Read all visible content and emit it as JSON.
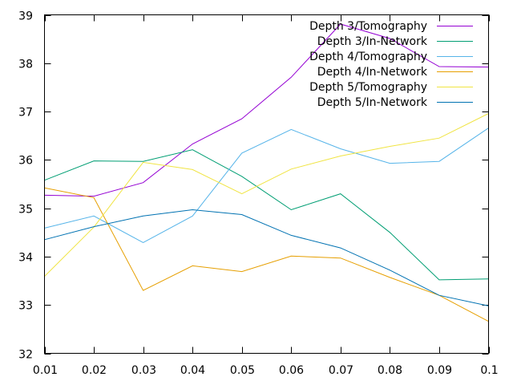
{
  "chart_data": {
    "type": "line",
    "title": "",
    "xlabel": "",
    "ylabel": "",
    "xlim": [
      0.01,
      0.1
    ],
    "ylim": [
      32,
      39
    ],
    "grid": false,
    "legend_position": "top-right",
    "x": [
      0.01,
      0.02,
      0.03,
      0.04,
      0.05,
      0.06,
      0.07,
      0.08,
      0.09,
      0.1
    ],
    "x_tick_labels": [
      "0.01",
      "0.02",
      "0.03",
      "0.04",
      "0.05",
      "0.06",
      "0.07",
      "0.08",
      "0.09",
      "0.1"
    ],
    "y_ticks": [
      32,
      33,
      34,
      35,
      36,
      37,
      38,
      39
    ],
    "y_tick_labels": [
      "32",
      "33",
      "34",
      "35",
      "36",
      "37",
      "38",
      "39"
    ],
    "series": [
      {
        "name": "Depth 3/Tomography",
        "color": "#9400d3",
        "values": [
          35.27,
          35.25,
          35.53,
          36.33,
          36.85,
          37.71,
          38.81,
          38.51,
          37.93,
          37.92
        ]
      },
      {
        "name": "Depth 3/In-Network",
        "color": "#009e73",
        "values": [
          35.58,
          35.98,
          35.97,
          36.21,
          35.66,
          34.97,
          35.3,
          34.5,
          33.52,
          33.54
        ]
      },
      {
        "name": "Depth 4/Tomography",
        "color": "#56b4e9",
        "values": [
          34.59,
          34.84,
          34.29,
          34.84,
          36.14,
          36.63,
          36.23,
          35.93,
          35.97,
          36.66
        ]
      },
      {
        "name": "Depth 4/In-Network",
        "color": "#e69f00",
        "values": [
          35.42,
          35.22,
          33.3,
          33.81,
          33.69,
          34.01,
          33.97,
          33.57,
          33.2,
          32.66
        ]
      },
      {
        "name": "Depth 5/Tomography",
        "color": "#f0e442",
        "values": [
          33.59,
          34.61,
          35.95,
          35.8,
          35.3,
          35.81,
          36.08,
          36.28,
          36.45,
          36.96
        ]
      },
      {
        "name": "Depth 5/In-Network",
        "color": "#0072b2",
        "values": [
          34.35,
          34.62,
          34.84,
          34.97,
          34.87,
          34.44,
          34.18,
          33.72,
          33.2,
          32.98
        ]
      }
    ]
  }
}
